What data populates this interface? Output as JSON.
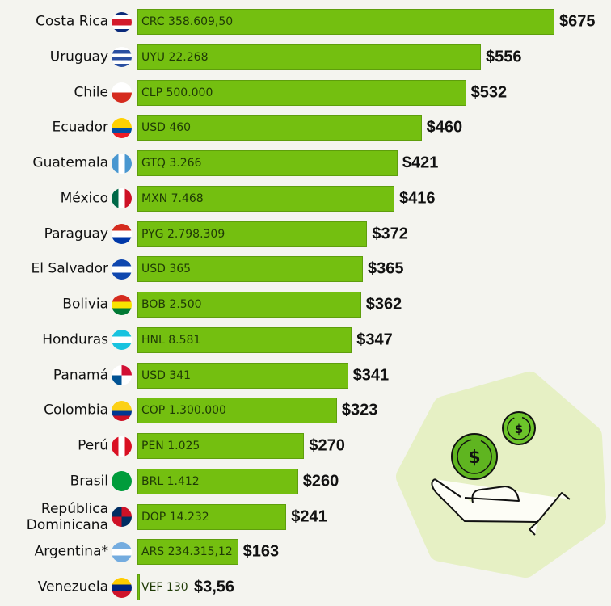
{
  "chart_data": {
    "type": "bar",
    "orientation": "horizontal",
    "title": "",
    "xlabel": "",
    "ylabel": "",
    "xlim": [
      0,
      675
    ],
    "grid": false,
    "categories": [
      "Costa Rica",
      "Uruguay",
      "Chile",
      "Ecuador",
      "Guatemala",
      "México",
      "Paraguay",
      "El Salvador",
      "Bolivia",
      "Honduras",
      "Panamá",
      "Colombia",
      "Perú",
      "Brasil",
      "República Dominicana",
      "Argentina*",
      "Venezuela"
    ],
    "values": [
      675,
      556,
      532,
      460,
      421,
      416,
      372,
      365,
      362,
      347,
      341,
      323,
      270,
      260,
      241,
      163,
      3.56
    ],
    "value_labels": [
      "$675",
      "$556",
      "$532",
      "$460",
      "$421",
      "$416",
      "$372",
      "$365",
      "$362",
      "$347",
      "$341",
      "$323",
      "$270",
      "$260",
      "$241",
      "$163",
      "$3,56"
    ],
    "local_labels": [
      "CRC 358.609,50",
      "UYU 22.268",
      "CLP 500.000",
      "USD 460",
      "GTQ 3.266",
      "MXN 7.468",
      "PYG 2.798.309",
      "USD 365",
      "BOB 2.500",
      "HNL 8.581",
      "USD 341",
      "COP 1.300.000",
      "PEN 1.025",
      "BRL 1.412",
      "DOP 14.232",
      "ARS 234.315,12",
      "VEF 130"
    ],
    "flags": [
      {
        "dir": "h",
        "colors": [
          "#0a2a7a",
          "#fff",
          "#d31a2a",
          "#d31a2a",
          "#fff",
          "#0a2a7a"
        ]
      },
      {
        "dir": "h",
        "colors": [
          "#fff",
          "#2a4fa0",
          "#fff",
          "#2a4fa0",
          "#fff",
          "#2a4fa0"
        ]
      },
      {
        "dir": "h",
        "colors": [
          "#fff",
          "#d52b1e"
        ]
      },
      {
        "dir": "h",
        "colors": [
          "#ffd100",
          "#ffd100",
          "#034ea2",
          "#ed1c24"
        ]
      },
      {
        "dir": "v",
        "colors": [
          "#4997d0",
          "#fff",
          "#4997d0"
        ]
      },
      {
        "dir": "v",
        "colors": [
          "#006847",
          "#fff",
          "#ce1126"
        ]
      },
      {
        "dir": "h",
        "colors": [
          "#d52b1e",
          "#fff",
          "#0038a8"
        ]
      },
      {
        "dir": "h",
        "colors": [
          "#0f47af",
          "#fff",
          "#0f47af"
        ]
      },
      {
        "dir": "h",
        "colors": [
          "#d52b1e",
          "#f9e300",
          "#007934"
        ]
      },
      {
        "dir": "h",
        "colors": [
          "#18c3df",
          "#fff",
          "#18c3df"
        ]
      },
      {
        "dir": "q",
        "colors": [
          "#fff",
          "#d21034",
          "#005293",
          "#fff"
        ]
      },
      {
        "dir": "h",
        "colors": [
          "#fcd116",
          "#fcd116",
          "#003893",
          "#ce1126"
        ]
      },
      {
        "dir": "v",
        "colors": [
          "#d91023",
          "#fff",
          "#d91023"
        ]
      },
      {
        "dir": "h",
        "colors": [
          "#009c3b"
        ]
      },
      {
        "dir": "q",
        "colors": [
          "#002d62",
          "#ce1126",
          "#ce1126",
          "#002d62"
        ]
      },
      {
        "dir": "h",
        "colors": [
          "#74acdf",
          "#fff",
          "#74acdf"
        ]
      },
      {
        "dir": "h",
        "colors": [
          "#ffcc00",
          "#00247d",
          "#cf142b"
        ]
      }
    ],
    "bar_color": "#74bf10"
  }
}
